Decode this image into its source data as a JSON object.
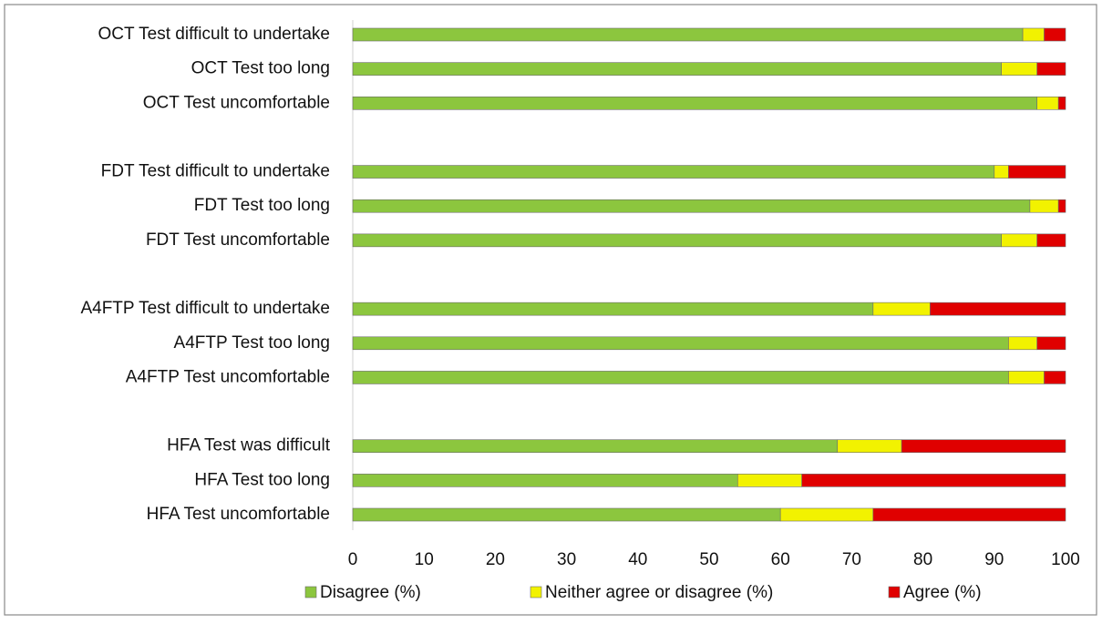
{
  "chart_data": {
    "type": "stacked-barh",
    "categories": [
      "OCT Test difficult to undertake",
      "OCT Test too long",
      "OCT Test uncomfortable",
      null,
      "FDT Test difficult to undertake",
      "FDT Test too long",
      "FDT Test uncomfortable",
      null,
      "A4FTP Test difficult to undertake",
      "A4FTP Test too long",
      "A4FTP Test uncomfortable",
      null,
      "HFA Test was difficult",
      "HFA Test too long",
      "HFA Test uncomfortable"
    ],
    "series": [
      {
        "name": "Disagree (%)",
        "color": "#8cc63e",
        "values": [
          94,
          91,
          96,
          null,
          90,
          95,
          91,
          null,
          73,
          92,
          92,
          null,
          68,
          54,
          60
        ]
      },
      {
        "name": "Neither agree or disagree (%)",
        "color": "#f2f200",
        "values": [
          3,
          5,
          3,
          null,
          2,
          4,
          5,
          null,
          8,
          4,
          5,
          null,
          9,
          9,
          13
        ]
      },
      {
        "name": "Agree  (%)",
        "color": "#e00000",
        "values": [
          3,
          4,
          1,
          null,
          8,
          1,
          4,
          null,
          19,
          4,
          3,
          null,
          23,
          37,
          27
        ]
      }
    ],
    "xlim": [
      0,
      100
    ],
    "xticks": [
      0,
      10,
      20,
      30,
      40,
      50,
      60,
      70,
      80,
      90,
      100
    ],
    "legend": "bottom"
  }
}
